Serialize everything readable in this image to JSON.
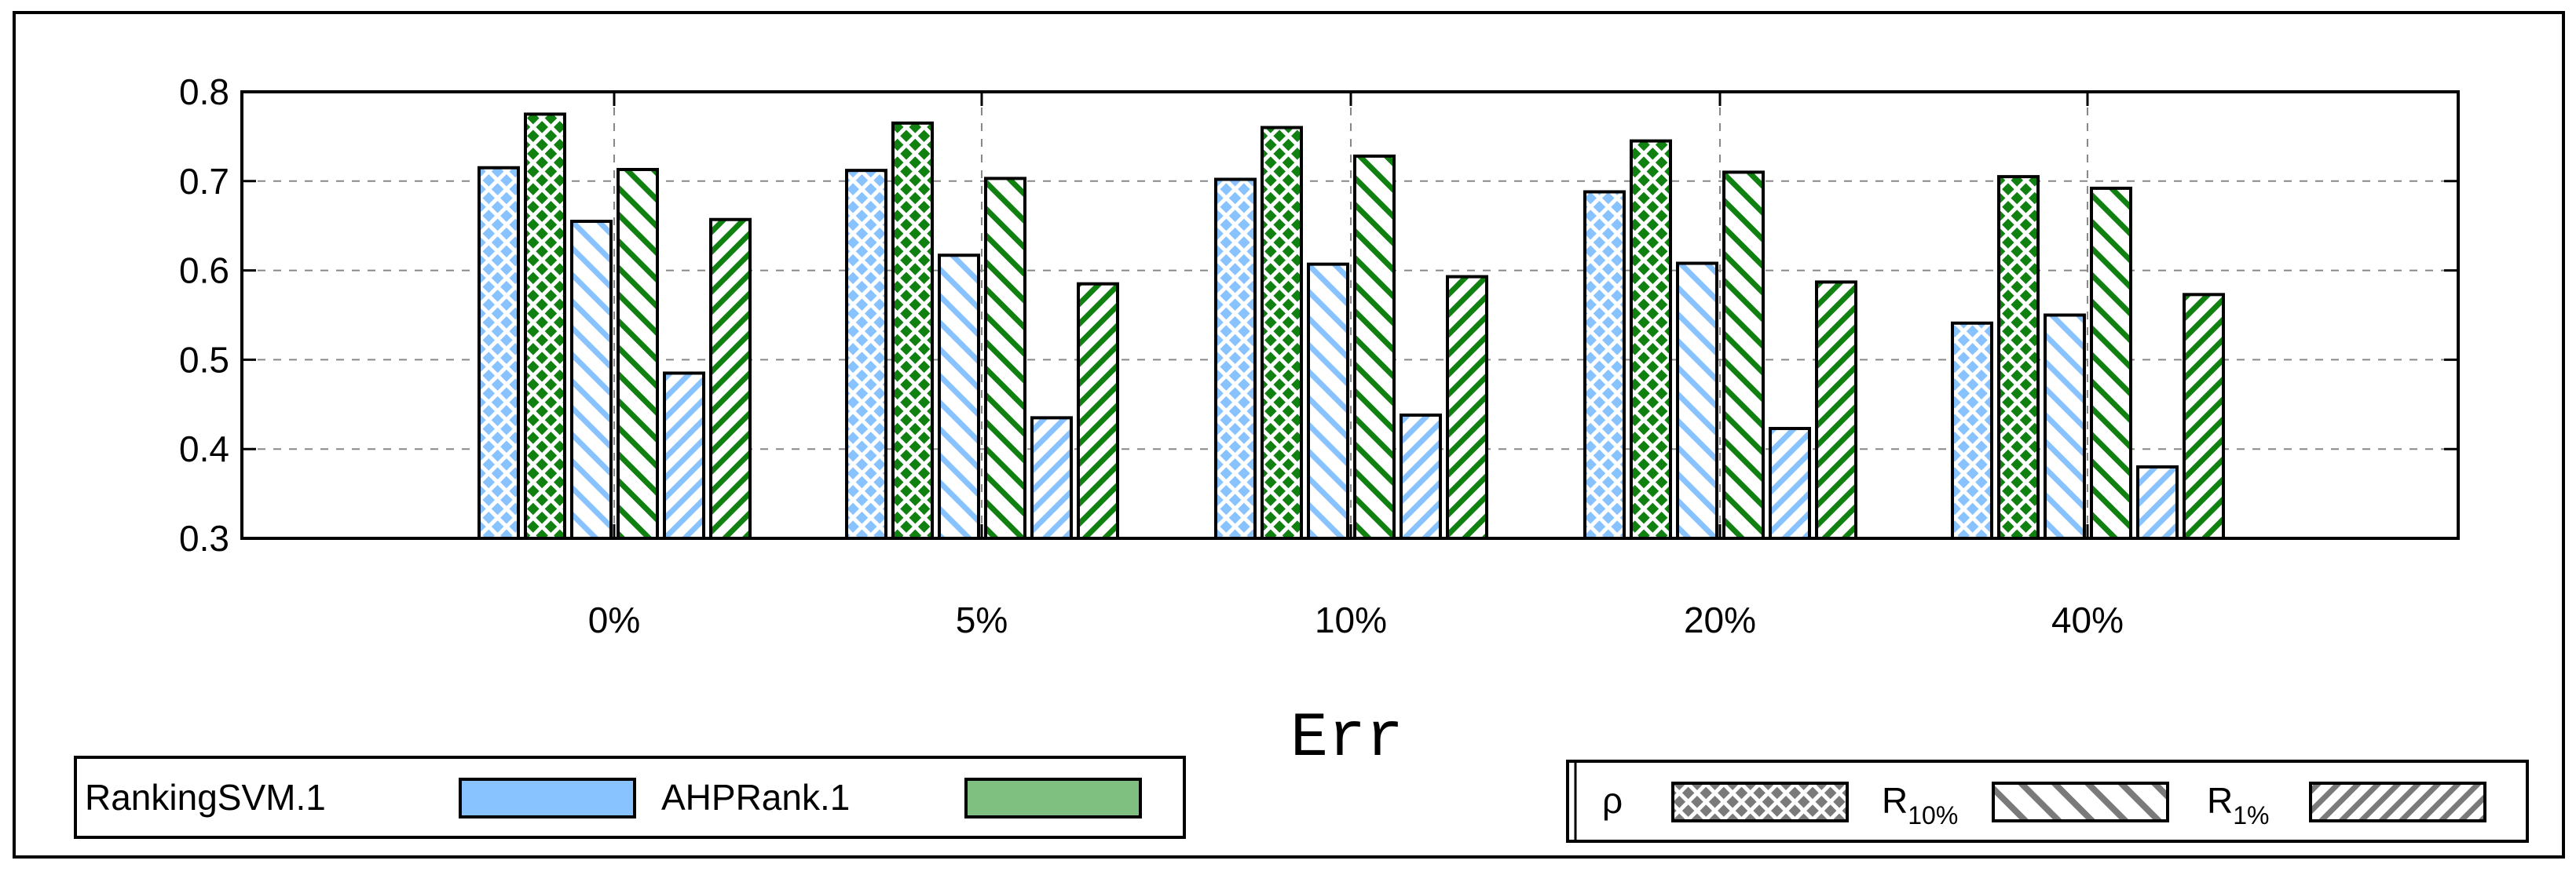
{
  "chart_data": {
    "type": "bar",
    "xlabel": "Err",
    "ylabel": "",
    "ylim": [
      0.3,
      0.8
    ],
    "yticks": [
      "0.3",
      "0.4",
      "0.5",
      "0.6",
      "0.7",
      "0.8"
    ],
    "categories": [
      "0%",
      "5%",
      "10%",
      "20%",
      "40%"
    ],
    "grid": true,
    "bar_order": [
      "RankingSVM.1 ρ",
      "AHPRank.1 ρ",
      "RankingSVM.1 R10%",
      "AHPRank.1 R10%",
      "RankingSVM.1 R1%",
      "AHPRank.1 R1%"
    ],
    "series": [
      {
        "method": "RankingSVM.1",
        "metric": "ρ",
        "color": "#88c2ff",
        "pattern": "crosshatch",
        "values": [
          0.715,
          0.712,
          0.702,
          0.688,
          0.541
        ]
      },
      {
        "method": "AHPRank.1",
        "metric": "ρ",
        "color": "#108010",
        "pattern": "crosshatch",
        "values": [
          0.775,
          0.765,
          0.76,
          0.745,
          0.705
        ]
      },
      {
        "method": "RankingSVM.1",
        "metric": "R10%",
        "color": "#88c2ff",
        "pattern": "backslash",
        "values": [
          0.655,
          0.617,
          0.607,
          0.608,
          0.55
        ]
      },
      {
        "method": "AHPRank.1",
        "metric": "R10%",
        "color": "#108010",
        "pattern": "backslash",
        "values": [
          0.713,
          0.703,
          0.728,
          0.71,
          0.692
        ]
      },
      {
        "method": "RankingSVM.1",
        "metric": "R1%",
        "color": "#88c2ff",
        "pattern": "slash",
        "values": [
          0.485,
          0.435,
          0.438,
          0.423,
          0.38
        ]
      },
      {
        "method": "AHPRank.1",
        "metric": "R1%",
        "color": "#108010",
        "pattern": "slash",
        "values": [
          0.657,
          0.585,
          0.593,
          0.587,
          0.573
        ]
      }
    ],
    "legend_methods": [
      {
        "label": "RankingSVM.1",
        "color": "#88c2ff"
      },
      {
        "label": "AHPRank.1",
        "color": "#7fbf7f"
      }
    ],
    "legend_metrics": [
      {
        "label": "ρ",
        "sub": "",
        "pattern": "crosshatch"
      },
      {
        "label": "R",
        "sub": "10%",
        "pattern": "backslash"
      },
      {
        "label": "R",
        "sub": "1%",
        "pattern": "slash"
      }
    ],
    "legend_placement": "bottom"
  }
}
